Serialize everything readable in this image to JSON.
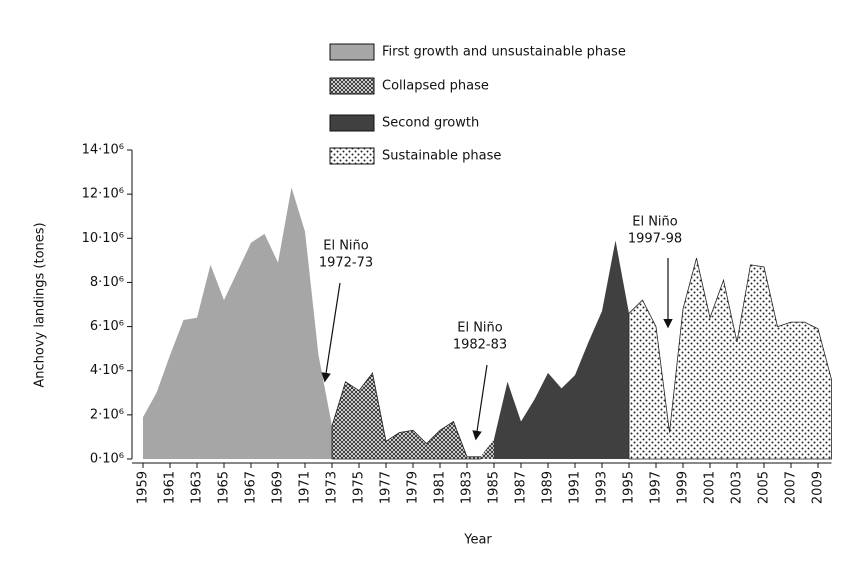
{
  "chart_data": {
    "type": "area",
    "xlabel": "Year",
    "ylabel": "Anchovy landings (tones)",
    "xlim": [
      1959,
      2010
    ],
    "ylim": [
      0,
      14000000
    ],
    "xticks": [
      1959,
      1961,
      1963,
      1965,
      1967,
      1969,
      1971,
      1973,
      1975,
      1977,
      1979,
      1981,
      1983,
      1985,
      1987,
      1989,
      1991,
      1993,
      1995,
      1997,
      1999,
      2001,
      2003,
      2005,
      2007,
      2009
    ],
    "yticks": [
      {
        "value": 0,
        "label": "0·10⁶"
      },
      {
        "value": 2000000,
        "label": "2·10⁶"
      },
      {
        "value": 4000000,
        "label": "4·10⁶"
      },
      {
        "value": 6000000,
        "label": "6·10⁶"
      },
      {
        "value": 8000000,
        "label": "8·10⁶"
      },
      {
        "value": 10000000,
        "label": "10·10⁶"
      },
      {
        "value": 12000000,
        "label": "12·10⁶"
      },
      {
        "value": 14000000,
        "label": "14·10⁶"
      }
    ],
    "series": [
      {
        "name": "First growth and unsustainable phase",
        "color": "#a6a6a6",
        "pattern": "solid",
        "x": [
          1959,
          1960,
          1961,
          1962,
          1963,
          1964,
          1965,
          1966,
          1967,
          1968,
          1969,
          1970,
          1971,
          1972
        ],
        "values": [
          1900000,
          3000000,
          4700000,
          6300000,
          6400000,
          8800000,
          7200000,
          8500000,
          9800000,
          10200000,
          8900000,
          12300000,
          10300000,
          4700000
        ]
      },
      {
        "name": "Collapsed phase",
        "color": "#333333",
        "pattern": "crosshatch",
        "x": [
          1973,
          1974,
          1975,
          1976,
          1977,
          1978,
          1979,
          1980,
          1981,
          1982,
          1983,
          1984
        ],
        "values": [
          1500000,
          3500000,
          3100000,
          3900000,
          800000,
          1200000,
          1300000,
          700000,
          1300000,
          1700000,
          100000,
          100000
        ]
      },
      {
        "name": "Second growth",
        "color": "#404040",
        "pattern": "solid",
        "x": [
          1985,
          1986,
          1987,
          1988,
          1989,
          1990,
          1991,
          1992,
          1993,
          1994
        ],
        "values": [
          900000,
          3500000,
          1700000,
          2700000,
          3900000,
          3200000,
          3800000,
          5300000,
          6700000,
          9900000
        ]
      },
      {
        "name": "Sustainable phase",
        "color": "#222222",
        "pattern": "dots",
        "x": [
          1995,
          1996,
          1997,
          1998,
          1999,
          2000,
          2001,
          2002,
          2003,
          2004,
          2005,
          2006,
          2007,
          2008,
          2009,
          2010
        ],
        "values": [
          6600000,
          7200000,
          6000000,
          1200000,
          6800000,
          9100000,
          6400000,
          8100000,
          5300000,
          8800000,
          8700000,
          6000000,
          6200000,
          6200000,
          5900000,
          3600000
        ]
      }
    ],
    "annotations": [
      {
        "lines": [
          "El Niño",
          "1972-73"
        ]
      },
      {
        "lines": [
          "El Niño",
          "1982-83"
        ]
      },
      {
        "lines": [
          "El Niño",
          "1997-98"
        ]
      }
    ]
  }
}
